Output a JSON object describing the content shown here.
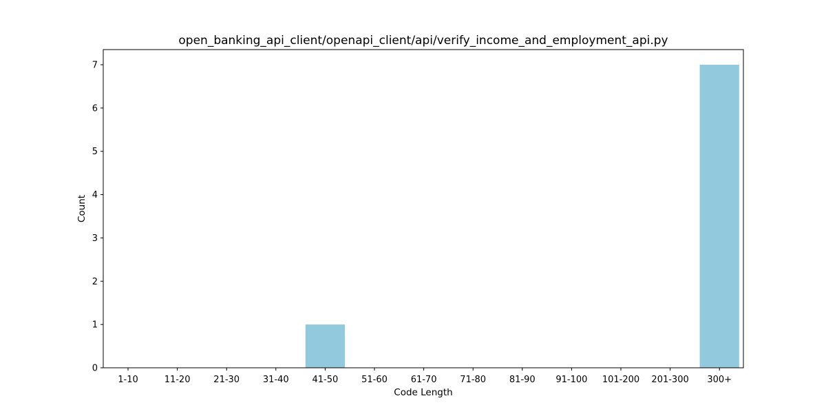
{
  "chart_data": {
    "type": "bar",
    "title": "open_banking_api_client/openapi_client/api/verify_income_and_employment_api.py",
    "xlabel": "Code Length",
    "ylabel": "Count",
    "categories": [
      "1-10",
      "11-20",
      "21-30",
      "31-40",
      "41-50",
      "51-60",
      "61-70",
      "71-80",
      "81-90",
      "91-100",
      "101-200",
      "201-300",
      "300+"
    ],
    "values": [
      0,
      0,
      0,
      0,
      1,
      0,
      0,
      0,
      0,
      0,
      0,
      0,
      7
    ],
    "ylim": [
      0,
      7.35
    ],
    "yticks": [
      0,
      1,
      2,
      3,
      4,
      5,
      6,
      7
    ],
    "bar_color": "#92c9dd",
    "grid": false,
    "legend": "none"
  }
}
